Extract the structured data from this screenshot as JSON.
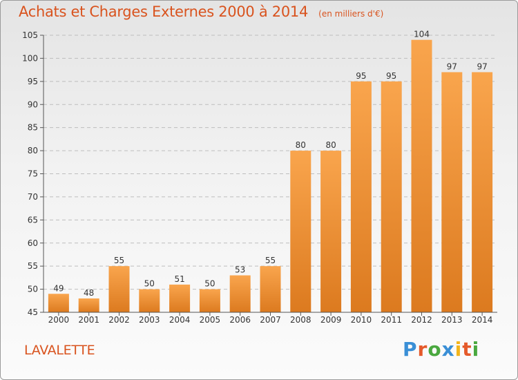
{
  "chart_data": {
    "type": "bar",
    "title": "Achats et Charges Externes 2000 à 2014",
    "subtitle": "(en milliers d'€)",
    "categories": [
      "2000",
      "2001",
      "2002",
      "2003",
      "2004",
      "2005",
      "2006",
      "2007",
      "2008",
      "2009",
      "2010",
      "2011",
      "2012",
      "2013",
      "2014"
    ],
    "values": [
      49,
      48,
      55,
      50,
      51,
      50,
      53,
      55,
      80,
      80,
      95,
      95,
      104,
      97,
      97
    ],
    "ylim": [
      45,
      105
    ],
    "yticks": [
      45,
      50,
      55,
      60,
      65,
      70,
      75,
      80,
      85,
      90,
      95,
      100,
      105
    ],
    "grid": true,
    "bar_color": "#f0922f"
  },
  "footer": {
    "commune": "LAVALETTE",
    "logo_text": "Proxiti",
    "logo_colors": [
      "#3a8fd6",
      "#e55a2b",
      "#4aa83f",
      "#3a8fd6",
      "#f2b51c",
      "#e55a2b",
      "#4aa83f"
    ]
  },
  "colors": {
    "accent": "#d9531e",
    "grid": "#bdbdbd"
  }
}
